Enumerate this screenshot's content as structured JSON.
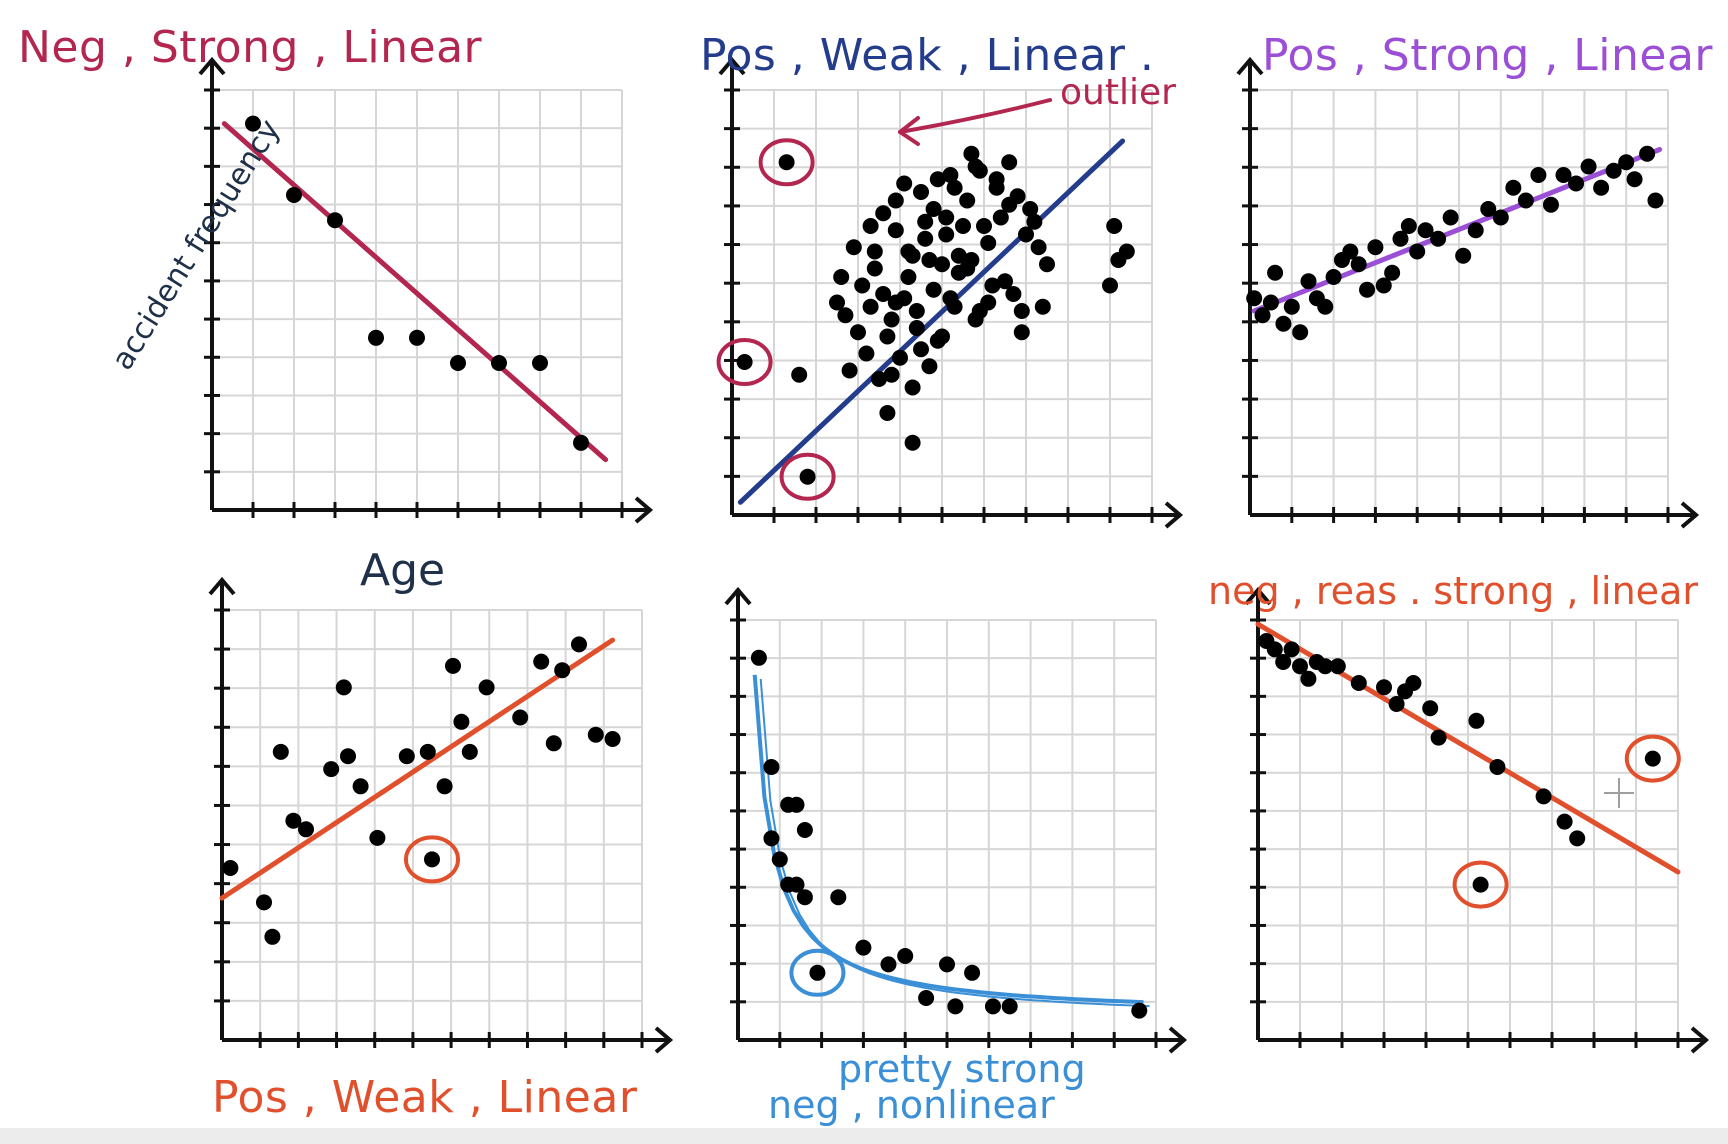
{
  "colors": {
    "maroon": "#b3264f",
    "navy": "#233c8c",
    "violet": "#9b4fd6",
    "orange": "#e1502c",
    "skyblue": "#3a8fd6",
    "ink": "#1f3049",
    "grid": "#d6d6d6",
    "axis": "#111111",
    "dot": "#000000"
  },
  "chart_data": [
    {
      "id": "p1",
      "type": "scatter",
      "title": "Neg , Strong , Linear",
      "title_color": "maroon",
      "xlabel": "Age",
      "ylabel": "accident frequency",
      "xlim": [
        0,
        10
      ],
      "ylim": [
        0,
        10
      ],
      "x": [
        1,
        2,
        3,
        4,
        5,
        6,
        7,
        8,
        9
      ],
      "y": [
        9.2,
        7.5,
        6.9,
        4.1,
        4.1,
        3.5,
        3.5,
        3.5,
        1.6
      ],
      "trendline": {
        "color": "maroon",
        "points": [
          [
            0.3,
            9.2
          ],
          [
            9.6,
            1.2
          ]
        ]
      },
      "circled": []
    },
    {
      "id": "p2",
      "type": "scatter",
      "title": "Pos , Weak , Linear .",
      "title_color": "navy",
      "xlim": [
        0,
        10
      ],
      "ylim": [
        0,
        10
      ],
      "x": [
        2.5,
        3.1,
        2.9,
        3.3,
        2.7,
        3.6,
        3.9,
        4.2,
        3.4,
        3.8,
        4.5,
        4.9,
        5.2,
        4.6,
        5.6,
        5.9,
        6.3,
        6.6,
        5.4,
        4.8,
        4.1,
        3.7,
        5.1,
        5.7,
        6.1,
        6.4,
        6.8,
        7.2,
        7.5,
        4.4,
        3.2,
        5.3,
        4.7,
        6.2,
        5.8,
        4.0,
        3.5,
        6.9,
        7.0,
        5.0,
        4.3,
        3.9,
        5.5,
        6.5,
        2.8,
        3.6,
        4.9,
        5.9,
        6.7,
        7.3,
        4.2,
        5.2,
        3.0,
        4.6,
        5.6,
        6.0,
        6.3,
        7.1,
        4.8,
        3.4,
        4.4,
        5.4,
        3.8,
        4.1,
        5.7,
        6.6,
        5.1,
        4.5,
        3.3,
        6.9,
        2.6,
        3.9,
        4.7,
        5.3,
        6.1,
        4.3,
        5.0,
        3.7,
        5.8,
        7.4,
        9.1,
        9.4,
        9.2,
        9.0,
        1.6,
        4.3
      ],
      "y": [
        5.0,
        5.4,
        6.3,
        6.8,
        4.7,
        7.1,
        6.7,
        6.2,
        5.8,
        4.6,
        7.6,
        7.9,
        8.0,
        6.9,
        7.4,
        8.1,
        7.7,
        7.3,
        5.7,
        5.3,
        5.1,
        4.2,
        6.6,
        6.0,
        6.4,
        7.0,
        7.5,
        6.9,
        5.9,
        4.4,
        3.8,
        4.9,
        3.5,
        5.4,
        4.6,
        3.7,
        3.2,
        4.8,
        6.6,
        5.9,
        6.1,
        7.4,
        6.8,
        5.5,
        3.4,
        5.2,
        4.1,
        4.8,
        5.2,
        6.3,
        5.6,
        5.1,
        4.3,
        6.5,
        5.8,
        6.8,
        7.9,
        7.2,
        7.2,
        6.2,
        4.8,
        6.1,
        3.3,
        7.8,
        8.5,
        8.3,
        7.0,
        3.9,
        4.9,
        4.3,
        5.6,
        5.0,
        6.0,
        7.7,
        5.0,
        3.0,
        4.2,
        2.4,
        8.2,
        4.9,
        6.8,
        6.2,
        6.0,
        5.4,
        3.3,
        1.7
      ],
      "outliers": [
        {
          "x": 1.3,
          "y": 8.3
        },
        {
          "x": 0.3,
          "y": 3.6
        },
        {
          "x": 1.8,
          "y": 0.9
        }
      ],
      "trendline": {
        "color": "navy",
        "points": [
          [
            0.2,
            0.3
          ],
          [
            9.3,
            8.8
          ]
        ]
      },
      "annotation": "outlier"
    },
    {
      "id": "p3",
      "type": "scatter",
      "title": "Pos , Strong , Linear",
      "title_color": "violet",
      "xlim": [
        0,
        10
      ],
      "ylim": [
        0,
        10
      ],
      "x": [
        0.1,
        0.3,
        0.5,
        0.6,
        0.8,
        1.0,
        1.2,
        1.4,
        1.6,
        1.8,
        2.0,
        2.2,
        2.4,
        2.6,
        2.8,
        3.0,
        3.2,
        3.4,
        3.6,
        3.8,
        4.0,
        4.2,
        4.5,
        4.8,
        5.1,
        5.4,
        5.7,
        6.0,
        6.3,
        6.6,
        6.9,
        7.2,
        7.5,
        7.8,
        8.1,
        8.4,
        8.7,
        9.0,
        9.2,
        9.5,
        9.7
      ],
      "y": [
        5.1,
        4.7,
        5.0,
        5.7,
        4.5,
        4.9,
        4.3,
        5.5,
        5.1,
        4.9,
        5.6,
        6.0,
        6.2,
        5.9,
        5.3,
        6.3,
        5.4,
        5.7,
        6.5,
        6.8,
        6.2,
        6.7,
        6.5,
        7.0,
        6.1,
        6.7,
        7.2,
        7.0,
        7.7,
        7.4,
        8.0,
        7.3,
        8.0,
        7.8,
        8.2,
        7.7,
        8.1,
        8.3,
        7.9,
        8.5,
        7.4
      ],
      "trendline": {
        "color": "violet",
        "points": [
          [
            0.1,
            4.8
          ],
          [
            9.8,
            8.6
          ]
        ]
      }
    },
    {
      "id": "p4",
      "type": "scatter",
      "title": "Pos , Weak , Linear",
      "title_color": "orange",
      "xlim": [
        0,
        10
      ],
      "ylim": [
        0,
        10
      ],
      "x": [
        0.2,
        1.0,
        1.2,
        1.4,
        1.7,
        2.0,
        2.6,
        2.9,
        3.0,
        3.3,
        3.7,
        4.4,
        4.9,
        5.3,
        5.5,
        5.7,
        5.9,
        6.3,
        7.1,
        7.6,
        7.9,
        8.1,
        8.5,
        8.9,
        9.3
      ],
      "y": [
        4.0,
        3.2,
        2.4,
        6.7,
        5.1,
        4.9,
        6.3,
        8.2,
        6.6,
        5.9,
        4.7,
        6.6,
        6.7,
        5.9,
        8.7,
        7.4,
        6.7,
        8.2,
        7.5,
        8.8,
        6.9,
        8.6,
        9.2,
        7.1,
        7.0
      ],
      "circled": [
        {
          "x": 5.0,
          "y": 4.2
        }
      ],
      "trendline": {
        "color": "orange",
        "points": [
          [
            0.0,
            3.3
          ],
          [
            9.3,
            9.3
          ]
        ]
      }
    },
    {
      "id": "p5",
      "type": "scatter",
      "title": "pretty strong\nneg , nonlinear",
      "title_color": "skyblue",
      "xlim": [
        0,
        10
      ],
      "ylim": [
        0,
        10
      ],
      "x": [
        0.5,
        0.8,
        0.8,
        1.0,
        1.2,
        1.2,
        1.4,
        1.4,
        1.6,
        1.6,
        2.4,
        3.0,
        3.6,
        4.0,
        4.5,
        5.0,
        5.2,
        5.6,
        6.1,
        6.5,
        9.6
      ],
      "y": [
        9.1,
        6.5,
        4.8,
        4.3,
        5.6,
        3.7,
        5.6,
        3.7,
        5.0,
        3.4,
        3.4,
        2.2,
        1.8,
        2.0,
        1.0,
        1.8,
        0.8,
        1.6,
        0.8,
        0.8,
        0.7
      ],
      "circled": [
        {
          "x": 1.9,
          "y": 1.6
        }
      ],
      "trendline": {
        "color": "skyblue",
        "curve": "nonlinear"
      }
    },
    {
      "id": "p6",
      "type": "scatter",
      "title": "neg , reas . strong , linear",
      "title_color": "orange",
      "xlim": [
        0,
        10
      ],
      "ylim": [
        0,
        10
      ],
      "x": [
        0.2,
        0.4,
        0.6,
        0.8,
        1.0,
        1.2,
        1.4,
        1.6,
        1.9,
        2.4,
        3.0,
        3.3,
        3.5,
        3.7,
        4.1,
        4.3,
        5.2,
        5.7,
        6.8,
        7.3,
        7.6
      ],
      "y": [
        9.5,
        9.3,
        9.0,
        9.3,
        8.9,
        8.6,
        9.0,
        8.9,
        8.9,
        8.5,
        8.4,
        8.0,
        8.3,
        8.5,
        7.9,
        7.2,
        7.6,
        6.5,
        5.8,
        5.2,
        4.8
      ],
      "outliers": [
        {
          "x": 9.4,
          "y": 6.7
        }
      ],
      "circled": [
        {
          "x": 5.3,
          "y": 3.7
        }
      ],
      "trendline": {
        "color": "orange",
        "points": [
          [
            0.0,
            9.9
          ],
          [
            10.0,
            4.0
          ]
        ]
      }
    }
  ]
}
